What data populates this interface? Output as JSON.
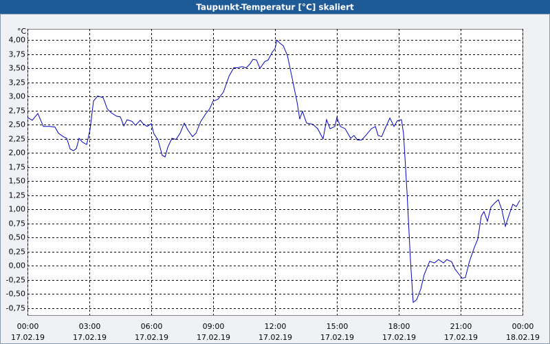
{
  "chart_data": {
    "type": "line",
    "title": "Taupunkt-Temperatur [°C] skaliert",
    "y_unit": "°C",
    "x": [
      0,
      0.23,
      0.5,
      0.77,
      1.07,
      1.33,
      1.5,
      1.73,
      1.9,
      2.07,
      2.23,
      2.37,
      2.5,
      2.67,
      2.87,
      3.03,
      3.2,
      3.4,
      3.67,
      3.87,
      4.07,
      4.33,
      4.5,
      4.67,
      4.83,
      5.07,
      5.23,
      5.47,
      5.6,
      5.8,
      6,
      6.13,
      6.33,
      6.53,
      6.67,
      6.8,
      7,
      7.2,
      7.4,
      7.6,
      7.77,
      8,
      8.17,
      8.4,
      8.67,
      8.83,
      9,
      9.23,
      9.5,
      9.77,
      10,
      10.17,
      10.4,
      10.6,
      10.77,
      10.93,
      11.1,
      11.27,
      11.5,
      11.67,
      11.87,
      12,
      12.1,
      12.23,
      12.4,
      12.6,
      12.83,
      13.07,
      13.2,
      13.33,
      13.53,
      13.83,
      14.07,
      14.33,
      14.5,
      14.67,
      14.9,
      15,
      15.17,
      15.4,
      15.67,
      15.83,
      16,
      16.2,
      16.4,
      16.67,
      16.87,
      17,
      17.17,
      17.37,
      17.57,
      17.77,
      17.93,
      18.13,
      18.23,
      18.4,
      18.57,
      18.7,
      18.87,
      19.07,
      19.23,
      19.5,
      19.73,
      19.93,
      20.17,
      20.33,
      20.57,
      20.73,
      20.9,
      21.07,
      21.23,
      21.43,
      21.67,
      21.83,
      22,
      22.13,
      22.3,
      22.47,
      22.67,
      22.83,
      23,
      23.17,
      23.33,
      23.53,
      23.7,
      23.87
    ],
    "series": [
      {
        "name": "Taupunkt-Temperatur",
        "color": "#0000c0",
        "values": [
          2.63,
          2.58,
          2.7,
          2.47,
          2.47,
          2.46,
          2.35,
          2.29,
          2.26,
          2.07,
          2.04,
          2.08,
          2.26,
          2.19,
          2.15,
          2.41,
          2.92,
          3.01,
          2.98,
          2.78,
          2.71,
          2.65,
          2.64,
          2.48,
          2.59,
          2.56,
          2.49,
          2.58,
          2.52,
          2.47,
          2.52,
          2.34,
          2.23,
          1.96,
          1.93,
          2.1,
          2.26,
          2.24,
          2.35,
          2.53,
          2.41,
          2.29,
          2.35,
          2.56,
          2.71,
          2.78,
          2.92,
          2.95,
          3.08,
          3.36,
          3.51,
          3.51,
          3.53,
          3.51,
          3.57,
          3.66,
          3.65,
          3.5,
          3.62,
          3.65,
          3.79,
          3.85,
          4.0,
          3.95,
          3.9,
          3.73,
          3.33,
          2.9,
          2.6,
          2.74,
          2.53,
          2.51,
          2.43,
          2.25,
          2.59,
          2.43,
          2.47,
          2.63,
          2.47,
          2.43,
          2.26,
          2.31,
          2.23,
          2.23,
          2.31,
          2.43,
          2.47,
          2.31,
          2.29,
          2.46,
          2.62,
          2.47,
          2.57,
          2.59,
          2.35,
          1.31,
          0.08,
          -0.65,
          -0.6,
          -0.41,
          -0.16,
          0.08,
          0.05,
          0.11,
          0.05,
          0.11,
          0.07,
          -0.06,
          -0.14,
          -0.22,
          -0.21,
          0.08,
          0.33,
          0.47,
          0.88,
          0.96,
          0.79,
          1.04,
          1.12,
          1.17,
          0.99,
          0.7,
          0.88,
          1.09,
          1.05,
          1.16
        ]
      }
    ],
    "xlim": [
      0,
      24
    ],
    "xticks": [
      {
        "value": 0,
        "label": "00:00",
        "date": "17.02.19"
      },
      {
        "value": 3,
        "label": "03:00",
        "date": "17.02.19"
      },
      {
        "value": 6,
        "label": "06:00",
        "date": "17.02.19"
      },
      {
        "value": 9,
        "label": "09:00",
        "date": "17.02.19"
      },
      {
        "value": 12,
        "label": "12:00",
        "date": "17.02.19"
      },
      {
        "value": 15,
        "label": "15:00",
        "date": "17.02.19"
      },
      {
        "value": 18,
        "label": "18:00",
        "date": "17.02.19"
      },
      {
        "value": 21,
        "label": "21:00",
        "date": "17.02.19"
      },
      {
        "value": 24,
        "label": "00:00",
        "date": "18.02.19"
      }
    ],
    "ylim": [
      -0.875,
      4.2
    ],
    "yticks": [
      {
        "value": 4,
        "label": "4,00"
      },
      {
        "value": 3.75,
        "label": "3,75"
      },
      {
        "value": 3.5,
        "label": "3,50"
      },
      {
        "value": 3.25,
        "label": "3,25"
      },
      {
        "value": 3,
        "label": "3,00"
      },
      {
        "value": 2.75,
        "label": "2,75"
      },
      {
        "value": 2.5,
        "label": "2,50"
      },
      {
        "value": 2.25,
        "label": "2,25"
      },
      {
        "value": 2,
        "label": "2,00"
      },
      {
        "value": 1.75,
        "label": "1,75"
      },
      {
        "value": 1.5,
        "label": "1,50"
      },
      {
        "value": 1.25,
        "label": "1,25"
      },
      {
        "value": 1,
        "label": "1,00"
      },
      {
        "value": 0.75,
        "label": "0,75"
      },
      {
        "value": 0.5,
        "label": "0,50"
      },
      {
        "value": 0.25,
        "label": "0,25"
      },
      {
        "value": 0,
        "label": "0,00"
      },
      {
        "value": -0.25,
        "label": "-0,25"
      },
      {
        "value": -0.5,
        "label": "-0,50"
      },
      {
        "value": -0.75,
        "label": "-0,75"
      }
    ],
    "grid": true
  }
}
